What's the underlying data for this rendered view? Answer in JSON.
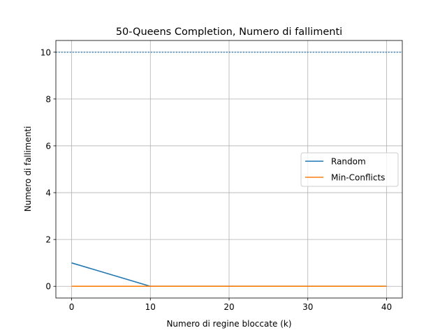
{
  "chart_data": {
    "type": "line",
    "title": "50-Queens Completion, Numero di fallimenti",
    "xlabel": "Numero di regine bloccate (k)",
    "ylabel": "Numero di fallimenti",
    "x": [
      0,
      10,
      20,
      30,
      40
    ],
    "xlim": [
      -2,
      42
    ],
    "ylim": [
      -0.5,
      10.5
    ],
    "xticks": [
      "0",
      "10",
      "20",
      "30",
      "40"
    ],
    "yticks": [
      "0",
      "2",
      "4",
      "6",
      "8",
      "10"
    ],
    "grid": true,
    "legend_position": "center-right",
    "series": [
      {
        "name": "Random",
        "color": "#1f77b4",
        "values": [
          1,
          0,
          0,
          0,
          0
        ]
      },
      {
        "name": "Min-Conflicts",
        "color": "#ff7f0e",
        "values": [
          0,
          0,
          0,
          0,
          0
        ]
      }
    ],
    "reference_line": {
      "y": 10,
      "style": "dotted",
      "color": "#1f77b4"
    }
  }
}
